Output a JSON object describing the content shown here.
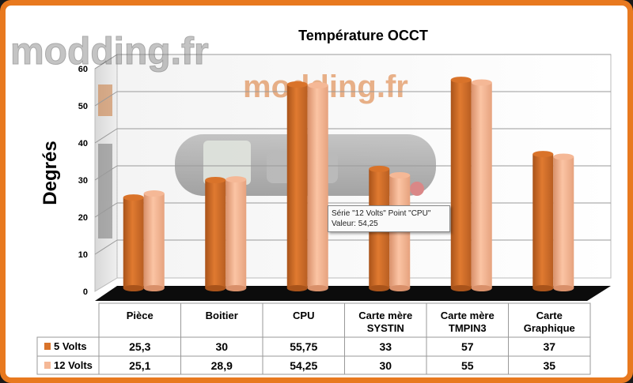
{
  "watermark": {
    "logo_text": "modding.fr",
    "background_text": "modding.fr"
  },
  "chart_data": {
    "type": "bar",
    "title": "Température OCCT",
    "ylabel": "Degrés",
    "xlabel": "",
    "ylim": [
      0,
      60
    ],
    "yticks": [
      0,
      10,
      20,
      30,
      40,
      50,
      60
    ],
    "grid": true,
    "legend_placement": "data-table-left",
    "categories": [
      {
        "line1": "Pièce",
        "line2": ""
      },
      {
        "line1": "Boitier",
        "line2": ""
      },
      {
        "line1": "CPU",
        "line2": ""
      },
      {
        "line1": "Carte mère",
        "line2": "SYSTIN"
      },
      {
        "line1": "Carte mère",
        "line2": "TMPIN3"
      },
      {
        "line1": "Carte",
        "line2": "Graphique"
      }
    ],
    "series": [
      {
        "name": "5 Volts",
        "color": "#d9732a",
        "values": [
          25.3,
          30,
          55.75,
          33,
          57,
          37
        ],
        "labels": [
          "25,3",
          "30",
          "55,75",
          "33",
          "57",
          "37"
        ]
      },
      {
        "name": "12 Volts",
        "color": "#f5b896",
        "values": [
          25.1,
          28.9,
          54.25,
          30,
          55,
          35
        ],
        "labels": [
          "25,1",
          "28,9",
          "54,25",
          "30",
          "55",
          "35"
        ]
      }
    ],
    "tooltip": {
      "line1": "Série \"12 Volts\" Point \"CPU\"",
      "line2": "Valeur: 54,25"
    }
  }
}
